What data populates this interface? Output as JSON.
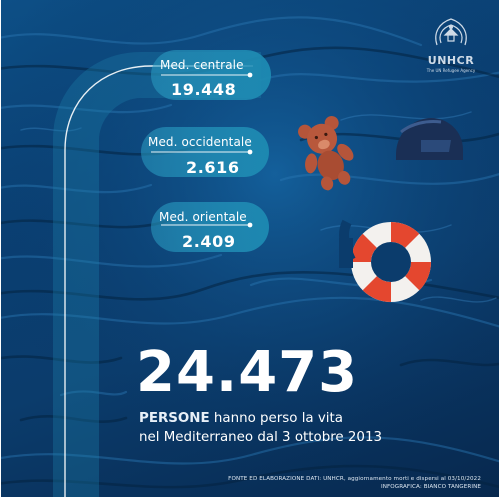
{
  "stats": [
    {
      "label": "Med. centrale",
      "value": "19.448"
    },
    {
      "label": "Med. occidentale",
      "value": "2.616"
    },
    {
      "label": "Med. orientale",
      "value": "2.409"
    }
  ],
  "total": "24.473",
  "caption": {
    "highlight": "PERSONE",
    "line1_rest": " hanno perso la vita",
    "line2": "nel Mediterraneo dal 3 ottobre 2013"
  },
  "source": {
    "line1": "FONTE ED ELABORAZIONE DATI: UNHCR, aggiornamento morti e dispersi al 03/10/2022",
    "line2": "INFOGRAFICA: BIANCO TANGERINE"
  },
  "logo": {
    "name": "UNHCR",
    "tagline": "The UN Refugee Agency"
  },
  "colors": {
    "sea_dark": "#07284e",
    "sea_mid": "#0b3c6c",
    "ribbon": "#1f8fb6",
    "lifebuoy_red": "#e4472f",
    "teddy_brown": "#b5553a",
    "text": "#ffffff"
  }
}
